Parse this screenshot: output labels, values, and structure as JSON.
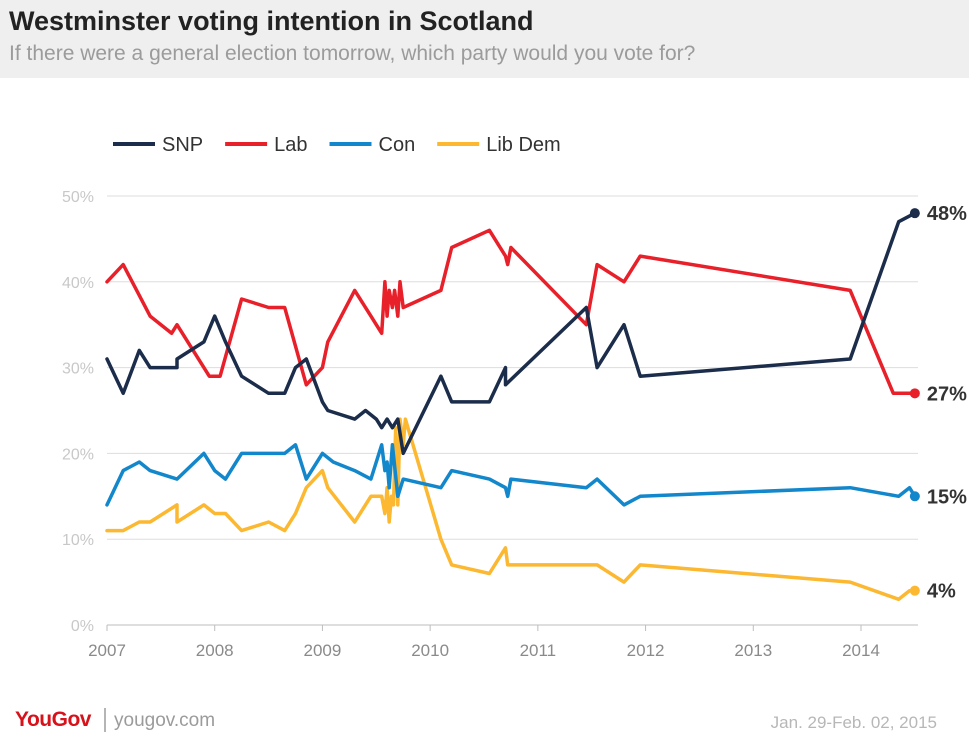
{
  "header": {
    "title": "Westminster voting intention in Scotland",
    "subtitle": "If there were a general election tomorrow, which party would you vote for?"
  },
  "footer": {
    "brand": "YouGov",
    "url": "yougov.com",
    "date": "Jan. 29-Feb. 02, 2015"
  },
  "chart_data": {
    "type": "line",
    "x_ticks": [
      "2007",
      "2008",
      "2009",
      "2010",
      "2011",
      "2012",
      "2013",
      "2014"
    ],
    "y_ticks": [
      "0%",
      "10%",
      "20%",
      "30%",
      "40%",
      "50%"
    ],
    "xlim": [
      2007.0,
      2014.9
    ],
    "ylim": [
      0,
      50
    ],
    "grid": true,
    "legend_position": "top-left",
    "end_labels": [
      "48%",
      "27%",
      "15%",
      "4%"
    ],
    "series": [
      {
        "name": "SNP",
        "color": "#1b2d4a",
        "points": [
          [
            2007.0,
            31
          ],
          [
            2007.15,
            27
          ],
          [
            2007.3,
            32
          ],
          [
            2007.4,
            30
          ],
          [
            2007.65,
            30
          ],
          [
            2007.65,
            31
          ],
          [
            2007.9,
            33
          ],
          [
            2008.0,
            36
          ],
          [
            2008.1,
            33
          ],
          [
            2008.25,
            29
          ],
          [
            2008.5,
            27
          ],
          [
            2008.65,
            27
          ],
          [
            2008.75,
            30
          ],
          [
            2008.85,
            31
          ],
          [
            2009.0,
            26
          ],
          [
            2009.05,
            25
          ],
          [
            2009.3,
            24
          ],
          [
            2009.4,
            25
          ],
          [
            2009.5,
            24
          ],
          [
            2009.55,
            23
          ],
          [
            2009.6,
            24
          ],
          [
            2009.65,
            23
          ],
          [
            2009.7,
            24
          ],
          [
            2009.75,
            20
          ],
          [
            2010.1,
            29
          ],
          [
            2010.2,
            26
          ],
          [
            2010.4,
            26
          ],
          [
            2010.55,
            26
          ],
          [
            2010.7,
            30
          ],
          [
            2010.7,
            28
          ],
          [
            2011.45,
            37
          ],
          [
            2011.55,
            30
          ],
          [
            2011.8,
            35
          ],
          [
            2011.95,
            29
          ],
          [
            2013.9,
            31
          ],
          [
            2014.35,
            47
          ],
          [
            2014.5,
            48
          ]
        ]
      },
      {
        "name": "Lab",
        "color": "#e8202a",
        "points": [
          [
            2007.0,
            40
          ],
          [
            2007.15,
            42
          ],
          [
            2007.4,
            36
          ],
          [
            2007.6,
            34
          ],
          [
            2007.65,
            35
          ],
          [
            2007.95,
            29
          ],
          [
            2008.05,
            29
          ],
          [
            2008.25,
            38
          ],
          [
            2008.5,
            37
          ],
          [
            2008.65,
            37
          ],
          [
            2008.85,
            28
          ],
          [
            2009.0,
            30
          ],
          [
            2009.05,
            33
          ],
          [
            2009.3,
            39
          ],
          [
            2009.45,
            36
          ],
          [
            2009.55,
            34
          ],
          [
            2009.58,
            40
          ],
          [
            2009.6,
            36
          ],
          [
            2009.62,
            39
          ],
          [
            2009.65,
            37
          ],
          [
            2009.67,
            39
          ],
          [
            2009.7,
            36
          ],
          [
            2009.72,
            40
          ],
          [
            2009.75,
            37
          ],
          [
            2010.1,
            39
          ],
          [
            2010.2,
            44
          ],
          [
            2010.55,
            46
          ],
          [
            2010.7,
            43
          ],
          [
            2010.72,
            42
          ],
          [
            2010.75,
            44
          ],
          [
            2011.45,
            35
          ],
          [
            2011.55,
            42
          ],
          [
            2011.8,
            40
          ],
          [
            2011.95,
            43
          ],
          [
            2013.9,
            39
          ],
          [
            2014.3,
            27
          ],
          [
            2014.5,
            27
          ]
        ]
      },
      {
        "name": "Con",
        "color": "#1387cb",
        "points": [
          [
            2007.0,
            14
          ],
          [
            2007.15,
            18
          ],
          [
            2007.3,
            19
          ],
          [
            2007.4,
            18
          ],
          [
            2007.65,
            17
          ],
          [
            2007.9,
            20
          ],
          [
            2008.0,
            18
          ],
          [
            2008.1,
            17
          ],
          [
            2008.25,
            20
          ],
          [
            2008.65,
            20
          ],
          [
            2008.75,
            21
          ],
          [
            2008.85,
            17
          ],
          [
            2009.0,
            20
          ],
          [
            2009.1,
            19
          ],
          [
            2009.3,
            18
          ],
          [
            2009.45,
            17
          ],
          [
            2009.55,
            21
          ],
          [
            2009.58,
            18
          ],
          [
            2009.6,
            19
          ],
          [
            2009.62,
            16
          ],
          [
            2009.65,
            21
          ],
          [
            2009.7,
            15
          ],
          [
            2009.75,
            17
          ],
          [
            2010.1,
            16
          ],
          [
            2010.2,
            18
          ],
          [
            2010.55,
            17
          ],
          [
            2010.7,
            16
          ],
          [
            2010.72,
            15
          ],
          [
            2010.75,
            17
          ],
          [
            2011.45,
            16
          ],
          [
            2011.55,
            17
          ],
          [
            2011.8,
            14
          ],
          [
            2011.95,
            15
          ],
          [
            2013.9,
            16
          ],
          [
            2014.35,
            15
          ],
          [
            2014.45,
            16
          ],
          [
            2014.5,
            15
          ]
        ]
      },
      {
        "name": "Lib Dem",
        "color": "#fbb830",
        "points": [
          [
            2007.0,
            11
          ],
          [
            2007.15,
            11
          ],
          [
            2007.3,
            12
          ],
          [
            2007.4,
            12
          ],
          [
            2007.65,
            14
          ],
          [
            2007.65,
            12
          ],
          [
            2007.9,
            14
          ],
          [
            2008.0,
            13
          ],
          [
            2008.1,
            13
          ],
          [
            2008.25,
            11
          ],
          [
            2008.5,
            12
          ],
          [
            2008.65,
            11
          ],
          [
            2008.75,
            13
          ],
          [
            2008.85,
            16
          ],
          [
            2009.0,
            18
          ],
          [
            2009.05,
            16
          ],
          [
            2009.3,
            12
          ],
          [
            2009.45,
            15
          ],
          [
            2009.55,
            15
          ],
          [
            2009.58,
            13
          ],
          [
            2009.6,
            16
          ],
          [
            2009.62,
            12
          ],
          [
            2009.64,
            15
          ],
          [
            2009.66,
            14
          ],
          [
            2009.68,
            23
          ],
          [
            2009.7,
            14
          ],
          [
            2009.72,
            24
          ],
          [
            2009.75,
            21
          ],
          [
            2009.77,
            24
          ],
          [
            2010.1,
            10
          ],
          [
            2010.2,
            7
          ],
          [
            2010.55,
            6
          ],
          [
            2010.7,
            9
          ],
          [
            2010.72,
            7
          ],
          [
            2011.45,
            7
          ],
          [
            2011.55,
            7
          ],
          [
            2011.8,
            5
          ],
          [
            2011.95,
            7
          ],
          [
            2013.9,
            5
          ],
          [
            2014.35,
            3
          ],
          [
            2014.45,
            4
          ],
          [
            2014.5,
            4
          ]
        ]
      }
    ]
  }
}
